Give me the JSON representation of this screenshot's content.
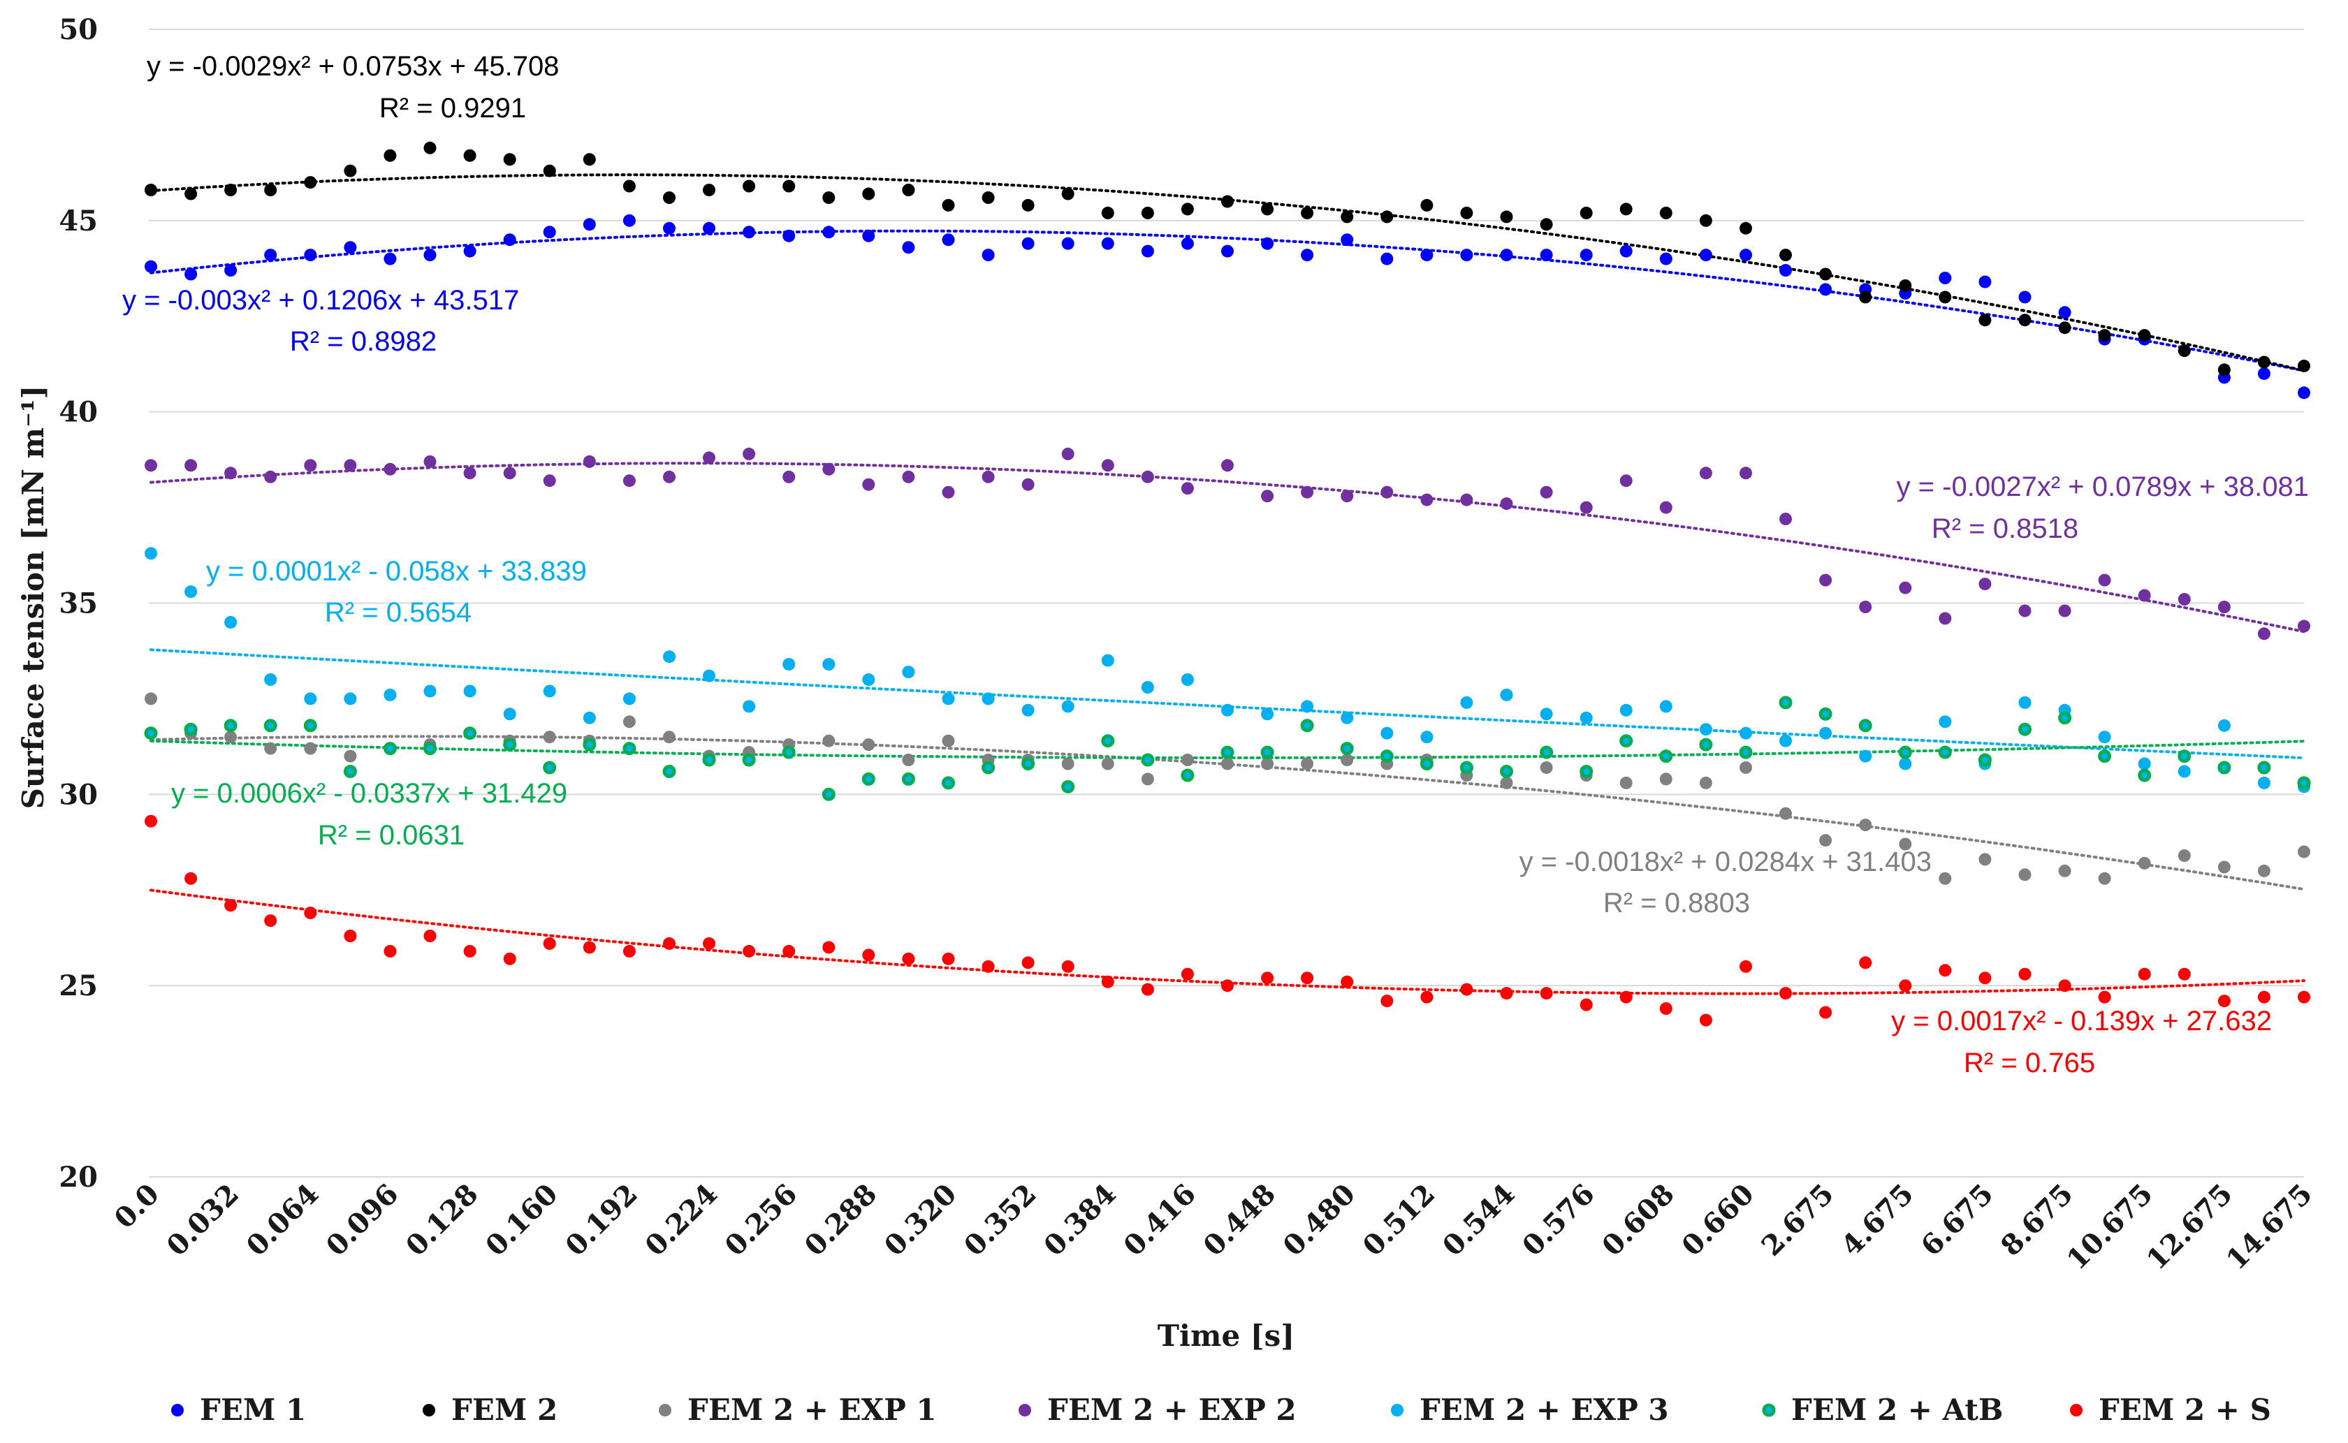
{
  "chart_data": {
    "type": "scatter",
    "title": "",
    "xlabel": "Time [s]",
    "ylabel": "Surface tension [mN m⁻¹]",
    "ylim": [
      20,
      50
    ],
    "yticks": [
      "20",
      "25",
      "30",
      "35",
      "40",
      "45",
      "50"
    ],
    "grid": "horizontal",
    "legend_position": "bottom",
    "x_tick_labels": [
      "0.0",
      "0.032",
      "0.064",
      "0.096",
      "0.128",
      "0.160",
      "0.192",
      "0.224",
      "0.256",
      "0.288",
      "0.320",
      "0.352",
      "0.384",
      "0.416",
      "0.448",
      "0.480",
      "0.512",
      "0.544",
      "0.576",
      "0.608",
      "0.660",
      "2.675",
      "4.675",
      "6.675",
      "8.675",
      "10.675",
      "12.675",
      "14.675"
    ],
    "x_positions_note": "",
    "series": [
      {
        "name": "FEM 1",
        "color": "#0000ff",
        "values": [
          43.8,
          43.6,
          43.7,
          44.1,
          44.1,
          44.3,
          44.0,
          44.1,
          44.2,
          44.5,
          44.7,
          44.9,
          45.0,
          44.8,
          44.8,
          44.7,
          44.6,
          44.7,
          44.6,
          44.3,
          44.5,
          44.1,
          44.4,
          44.4,
          44.4,
          44.2,
          44.4,
          44.2,
          44.4,
          44.1,
          44.5,
          44.0,
          44.1,
          44.1,
          44.1,
          44.1,
          44.1,
          44.2,
          44.0,
          44.1,
          44.1,
          43.7,
          43.2,
          43.2,
          43.1,
          43.5,
          43.4,
          43.0,
          42.6,
          41.9,
          41.9,
          41.6,
          40.9,
          41.0,
          40.5
        ],
        "trend": {
          "coeffs": [
            -0.003,
            0.1206,
            43.517
          ],
          "equation": "y = -0.003x² + 0.1206x + 43.517",
          "r2": "R² = 0.8982"
        }
      },
      {
        "name": "FEM 2",
        "color": "#000000",
        "values": [
          45.8,
          45.7,
          45.8,
          45.8,
          46.0,
          46.3,
          46.7,
          46.9,
          46.7,
          46.6,
          46.3,
          46.6,
          45.9,
          45.6,
          45.8,
          45.9,
          45.9,
          45.6,
          45.7,
          45.8,
          45.4,
          45.6,
          45.4,
          45.7,
          45.2,
          45.2,
          45.3,
          45.5,
          45.3,
          45.2,
          45.1,
          45.1,
          45.4,
          45.2,
          45.1,
          44.9,
          45.2,
          45.3,
          45.2,
          45.0,
          44.8,
          44.1,
          43.6,
          43.0,
          43.3,
          43.0,
          42.4,
          42.4,
          42.2,
          42.0,
          42.0,
          41.6,
          41.1,
          41.3,
          41.2
        ],
        "trend": {
          "coeffs": [
            -0.0029,
            0.0753,
            45.708
          ],
          "equation": "y = -0.0029x² + 0.0753x + 45.708",
          "r2": "R² = 0.9291"
        }
      },
      {
        "name": "FEM 2 + EXP 1",
        "color": "#808080",
        "values": [
          32.5,
          31.6,
          31.5,
          31.2,
          31.2,
          31.0,
          31.2,
          31.3,
          31.6,
          31.4,
          31.5,
          31.4,
          31.9,
          31.5,
          31.0,
          31.1,
          31.3,
          31.4,
          31.3,
          30.9,
          31.4,
          30.9,
          30.9,
          30.8,
          30.8,
          30.4,
          30.9,
          30.8,
          30.8,
          30.8,
          30.9,
          30.8,
          30.9,
          30.5,
          30.3,
          30.7,
          30.5,
          30.3,
          30.4,
          30.3,
          30.7,
          29.5,
          28.8,
          29.2,
          28.7,
          27.8,
          28.3,
          27.9,
          28.0,
          27.8,
          28.2,
          28.4,
          28.1,
          28.0,
          28.5
        ],
        "trend": {
          "coeffs": [
            -0.0018,
            0.0284,
            31.403
          ],
          "equation": "y = -0.0018x² + 0.0284x + 31.403",
          "r2": "R² = 0.8803"
        }
      },
      {
        "name": "FEM 2 + EXP 2",
        "color": "#7030a0",
        "values": [
          38.6,
          38.6,
          38.4,
          38.3,
          38.6,
          38.6,
          38.5,
          38.7,
          38.4,
          38.4,
          38.2,
          38.7,
          38.2,
          38.3,
          38.8,
          38.9,
          38.3,
          38.5,
          38.1,
          38.3,
          37.9,
          38.3,
          38.1,
          38.9,
          38.6,
          38.3,
          38.0,
          38.6,
          37.8,
          37.9,
          37.8,
          37.9,
          37.7,
          37.7,
          37.6,
          37.9,
          37.5,
          38.2,
          37.5,
          38.4,
          38.4,
          37.2,
          35.6,
          34.9,
          35.4,
          34.6,
          35.5,
          34.8,
          34.8,
          35.6,
          35.2,
          35.1,
          34.9,
          34.2,
          34.4
        ],
        "trend": {
          "coeffs": [
            -0.0027,
            0.0789,
            38.081
          ],
          "equation": "y = -0.0027x² + 0.0789x + 38.081",
          "r2": "R² = 0.8518"
        }
      },
      {
        "name": "FEM 2 + EXP 3",
        "color": "#00b0f0",
        "values": [
          36.3,
          35.3,
          34.5,
          33.0,
          32.5,
          32.5,
          32.6,
          32.7,
          32.7,
          32.1,
          32.7,
          32.0,
          32.5,
          33.6,
          33.1,
          32.3,
          33.4,
          33.4,
          33.0,
          33.2,
          32.5,
          32.5,
          32.2,
          32.3,
          33.5,
          32.8,
          33.0,
          32.2,
          32.1,
          32.3,
          32.0,
          31.6,
          31.5,
          32.4,
          32.6,
          32.1,
          32.0,
          32.2,
          32.3,
          31.7,
          31.6,
          31.4,
          31.6,
          31.0,
          30.8,
          31.9,
          30.8,
          32.4,
          32.2,
          31.5,
          30.8,
          30.6,
          31.8,
          30.3,
          30.2
        ],
        "trend": {
          "coeffs": [
            0.0001,
            -0.058,
            33.839
          ],
          "equation": "y = 0.0001x² - 0.058x + 33.839",
          "r2": "R² = 0.5654"
        }
      },
      {
        "name": "FEM 2 + AtB",
        "color": "#00b050",
        "values": [
          31.6,
          31.7,
          31.8,
          31.8,
          31.8,
          30.6,
          31.2,
          31.2,
          31.6,
          31.3,
          30.7,
          31.3,
          31.2,
          30.6,
          30.9,
          30.9,
          31.1,
          30.0,
          30.4,
          30.4,
          30.3,
          30.7,
          30.8,
          30.2,
          31.4,
          30.9,
          30.5,
          31.1,
          31.1,
          31.8,
          31.2,
          31.0,
          30.8,
          30.7,
          30.6,
          31.1,
          30.6,
          31.4,
          31.0,
          31.3,
          31.1,
          32.4,
          32.1,
          31.8,
          31.1,
          31.1,
          30.9,
          31.7,
          32.0,
          31.0,
          30.5,
          31.0,
          30.7,
          30.7,
          30.3
        ],
        "trend": {
          "coeffs": [
            0.0006,
            -0.0337,
            31.429
          ],
          "equation": "y = 0.0006x² - 0.0337x + 31.429",
          "r2": "R² = 0.0631"
        }
      },
      {
        "name": "FEM 2 + S",
        "color": "#ff0000",
        "values": [
          29.3,
          27.8,
          27.1,
          26.7,
          26.9,
          26.3,
          25.9,
          26.3,
          25.9,
          25.7,
          26.1,
          26.0,
          25.9,
          26.1,
          26.1,
          25.9,
          25.9,
          26.0,
          25.8,
          25.7,
          25.7,
          25.5,
          25.6,
          25.5,
          25.1,
          24.9,
          25.3,
          25.0,
          25.2,
          25.2,
          25.1,
          24.6,
          24.7,
          24.9,
          24.8,
          24.8,
          24.5,
          24.7,
          24.4,
          24.1,
          25.5,
          24.8,
          24.3,
          25.6,
          25.0,
          25.4,
          25.2,
          25.3,
          25.0,
          24.7,
          25.3,
          25.3,
          24.6,
          24.7,
          24.7
        ],
        "trend": {
          "coeffs": [
            0.0017,
            -0.139,
            27.632
          ],
          "equation": "y = 0.0017x² - 0.139x + 27.632",
          "r2": "R² = 0.765"
        }
      }
    ]
  }
}
